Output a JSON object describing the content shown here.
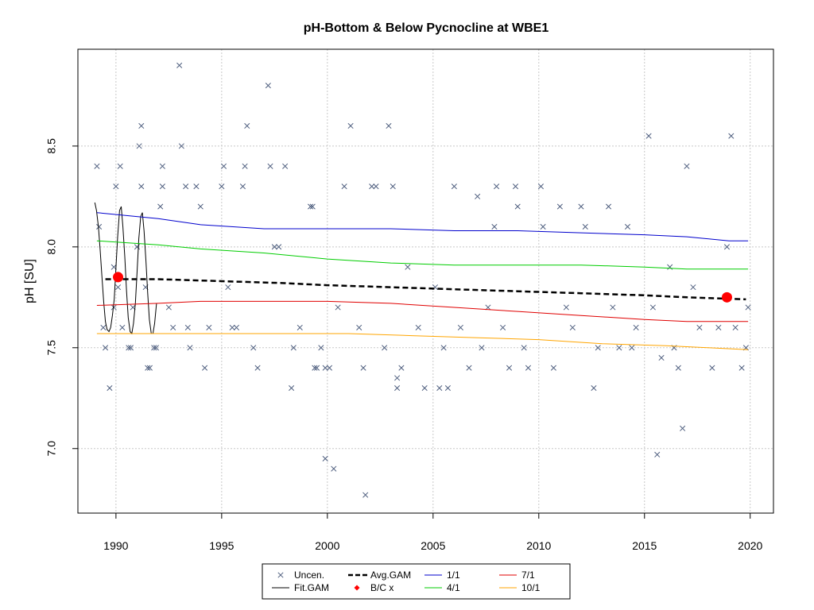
{
  "chart_data": {
    "type": "scatter",
    "title": "pH-Bottom & Below Pycnocline at WBE1",
    "xlabel": "",
    "ylabel": "pH [SU]",
    "xlim": [
      1988.2,
      2021.1
    ],
    "ylim": [
      6.68,
      8.98
    ],
    "x_ticks": [
      "1990",
      "1995",
      "2000",
      "2005",
      "2010",
      "2015",
      "2020"
    ],
    "y_ticks": [
      "7.0",
      "7.5",
      "8.0",
      "8.5"
    ],
    "grid": true,
    "legend_position": "bottom-center",
    "legend": [
      {
        "label": "Uncen.",
        "symbol": "x",
        "color": "#4F5F7F"
      },
      {
        "label": "Fit.GAM",
        "symbol": "line",
        "color": "#000000"
      },
      {
        "label": "Avg.GAM",
        "symbol": "dashed-line",
        "color": "#000000"
      },
      {
        "label": "B/C x",
        "symbol": "diamond",
        "color": "#FF0000"
      },
      {
        "label": "1/1",
        "symbol": "line",
        "color": "#0000CD"
      },
      {
        "label": "4/1",
        "symbol": "line",
        "color": "#00CD00"
      },
      {
        "label": "7/1",
        "symbol": "line",
        "color": "#E00000"
      },
      {
        "label": "10/1",
        "symbol": "line",
        "color": "#FFA500"
      }
    ],
    "colors": {
      "uncen": "#4F5F7F",
      "fit": "#000000",
      "avg": "#000000",
      "bc": "#FF0000",
      "jan": "#0000CD",
      "apr": "#00CD00",
      "jul": "#E00000",
      "oct": "#FFA500",
      "grid": "#C8C8C8"
    },
    "series": [
      {
        "name": "Uncen.",
        "type": "scatter",
        "points": [
          [
            1989.1,
            8.4
          ],
          [
            1989.2,
            8.1
          ],
          [
            1989.4,
            7.6
          ],
          [
            1989.5,
            7.5
          ],
          [
            1989.7,
            7.3
          ],
          [
            1989.9,
            7.7
          ],
          [
            1989.9,
            7.9
          ],
          [
            1990.0,
            8.3
          ],
          [
            1990.1,
            7.8
          ],
          [
            1990.2,
            8.4
          ],
          [
            1990.3,
            7.6
          ],
          [
            1990.6,
            7.5
          ],
          [
            1990.7,
            7.5
          ],
          [
            1990.8,
            7.7
          ],
          [
            1991.0,
            8.0
          ],
          [
            1991.1,
            8.5
          ],
          [
            1991.2,
            8.6
          ],
          [
            1991.2,
            8.3
          ],
          [
            1991.4,
            7.8
          ],
          [
            1991.5,
            7.4
          ],
          [
            1991.6,
            7.4
          ],
          [
            1991.8,
            7.5
          ],
          [
            1991.9,
            7.5
          ],
          [
            1992.1,
            8.2
          ],
          [
            1992.2,
            8.4
          ],
          [
            1992.2,
            8.3
          ],
          [
            1992.5,
            7.7
          ],
          [
            1992.7,
            7.6
          ],
          [
            1993.0,
            8.9
          ],
          [
            1993.1,
            8.5
          ],
          [
            1993.3,
            8.3
          ],
          [
            1993.4,
            7.6
          ],
          [
            1993.5,
            7.5
          ],
          [
            1993.8,
            8.3
          ],
          [
            1994.0,
            8.2
          ],
          [
            1994.2,
            7.4
          ],
          [
            1994.4,
            7.6
          ],
          [
            1995.0,
            8.3
          ],
          [
            1995.1,
            8.4
          ],
          [
            1995.3,
            7.8
          ],
          [
            1995.5,
            7.6
          ],
          [
            1995.7,
            7.6
          ],
          [
            1996.0,
            8.3
          ],
          [
            1996.1,
            8.4
          ],
          [
            1996.2,
            8.6
          ],
          [
            1996.5,
            7.5
          ],
          [
            1996.7,
            7.4
          ],
          [
            1997.2,
            8.8
          ],
          [
            1997.3,
            8.4
          ],
          [
            1997.5,
            8.0
          ],
          [
            1997.7,
            8.0
          ],
          [
            1998.0,
            8.4
          ],
          [
            1998.3,
            7.3
          ],
          [
            1998.4,
            7.5
          ],
          [
            1998.7,
            7.6
          ],
          [
            1999.2,
            8.2
          ],
          [
            1999.3,
            8.2
          ],
          [
            1999.4,
            7.4
          ],
          [
            1999.5,
            7.4
          ],
          [
            1999.7,
            7.5
          ],
          [
            1999.9,
            7.4
          ],
          [
            1999.9,
            6.95
          ],
          [
            2000.1,
            7.4
          ],
          [
            2000.3,
            6.9
          ],
          [
            2000.5,
            7.7
          ],
          [
            2000.8,
            8.3
          ],
          [
            2001.1,
            8.6
          ],
          [
            2001.5,
            7.6
          ],
          [
            2001.7,
            7.4
          ],
          [
            2001.8,
            6.77
          ],
          [
            2002.1,
            8.3
          ],
          [
            2002.3,
            8.3
          ],
          [
            2002.7,
            7.5
          ],
          [
            2002.9,
            8.6
          ],
          [
            2003.1,
            8.3
          ],
          [
            2003.3,
            7.3
          ],
          [
            2003.3,
            7.35
          ],
          [
            2003.5,
            7.4
          ],
          [
            2003.8,
            7.9
          ],
          [
            2004.3,
            7.6
          ],
          [
            2004.6,
            7.3
          ],
          [
            2005.1,
            7.8
          ],
          [
            2005.3,
            7.3
          ],
          [
            2005.5,
            7.5
          ],
          [
            2005.7,
            7.3
          ],
          [
            2006.0,
            8.3
          ],
          [
            2006.3,
            7.6
          ],
          [
            2006.7,
            7.4
          ],
          [
            2007.1,
            8.25
          ],
          [
            2007.3,
            7.5
          ],
          [
            2007.6,
            7.7
          ],
          [
            2007.9,
            8.1
          ],
          [
            2008.0,
            8.3
          ],
          [
            2008.3,
            7.6
          ],
          [
            2008.6,
            7.4
          ],
          [
            2008.9,
            8.3
          ],
          [
            2009.0,
            8.2
          ],
          [
            2009.3,
            7.5
          ],
          [
            2009.5,
            7.4
          ],
          [
            2010.1,
            8.3
          ],
          [
            2010.2,
            8.1
          ],
          [
            2010.7,
            7.4
          ],
          [
            2011.0,
            8.2
          ],
          [
            2011.3,
            7.7
          ],
          [
            2011.6,
            7.6
          ],
          [
            2012.0,
            8.2
          ],
          [
            2012.2,
            8.1
          ],
          [
            2012.6,
            7.3
          ],
          [
            2012.8,
            7.5
          ],
          [
            2013.3,
            8.2
          ],
          [
            2013.5,
            7.7
          ],
          [
            2013.8,
            7.5
          ],
          [
            2014.2,
            8.1
          ],
          [
            2014.4,
            7.5
          ],
          [
            2014.6,
            7.6
          ],
          [
            2015.2,
            8.55
          ],
          [
            2015.4,
            7.7
          ],
          [
            2015.6,
            6.97
          ],
          [
            2015.8,
            7.45
          ],
          [
            2016.2,
            7.9
          ],
          [
            2016.4,
            7.5
          ],
          [
            2016.6,
            7.4
          ],
          [
            2016.8,
            7.1
          ],
          [
            2017.0,
            8.4
          ],
          [
            2017.3,
            7.8
          ],
          [
            2017.6,
            7.6
          ],
          [
            2018.2,
            7.4
          ],
          [
            2018.5,
            7.6
          ],
          [
            2018.9,
            8.0
          ],
          [
            2019.1,
            8.55
          ],
          [
            2019.3,
            7.6
          ],
          [
            2019.6,
            7.4
          ],
          [
            2019.8,
            7.5
          ],
          [
            2019.9,
            7.7
          ]
        ]
      },
      {
        "name": "1/1",
        "type": "line",
        "points": [
          [
            1989.1,
            8.17
          ],
          [
            1992.0,
            8.14
          ],
          [
            1994.0,
            8.11
          ],
          [
            1997.0,
            8.09
          ],
          [
            2000.0,
            8.09
          ],
          [
            2003.0,
            8.09
          ],
          [
            2006.0,
            8.08
          ],
          [
            2009.0,
            8.08
          ],
          [
            2012.0,
            8.07
          ],
          [
            2015.0,
            8.06
          ],
          [
            2017.0,
            8.05
          ],
          [
            2019.0,
            8.03
          ],
          [
            2019.9,
            8.03
          ]
        ]
      },
      {
        "name": "4/1",
        "type": "line",
        "points": [
          [
            1989.1,
            8.03
          ],
          [
            1992.0,
            8.01
          ],
          [
            1994.0,
            7.99
          ],
          [
            1997.0,
            7.97
          ],
          [
            2000.0,
            7.94
          ],
          [
            2003.0,
            7.92
          ],
          [
            2006.0,
            7.91
          ],
          [
            2009.0,
            7.91
          ],
          [
            2012.0,
            7.91
          ],
          [
            2015.0,
            7.9
          ],
          [
            2017.0,
            7.89
          ],
          [
            2019.0,
            7.89
          ],
          [
            2019.9,
            7.89
          ]
        ]
      },
      {
        "name": "7/1",
        "type": "line",
        "points": [
          [
            1989.1,
            7.71
          ],
          [
            1992.0,
            7.72
          ],
          [
            1994.0,
            7.73
          ],
          [
            1997.0,
            7.73
          ],
          [
            2000.0,
            7.73
          ],
          [
            2003.0,
            7.72
          ],
          [
            2006.0,
            7.7
          ],
          [
            2009.0,
            7.68
          ],
          [
            2012.0,
            7.66
          ],
          [
            2015.0,
            7.64
          ],
          [
            2017.0,
            7.63
          ],
          [
            2019.0,
            7.63
          ],
          [
            2019.9,
            7.63
          ]
        ]
      },
      {
        "name": "10/1",
        "type": "line",
        "points": [
          [
            1989.1,
            7.57
          ],
          [
            1992.0,
            7.57
          ],
          [
            1995.0,
            7.57
          ],
          [
            1998.0,
            7.57
          ],
          [
            2001.0,
            7.57
          ],
          [
            2004.0,
            7.56
          ],
          [
            2007.0,
            7.55
          ],
          [
            2010.0,
            7.54
          ],
          [
            2013.0,
            7.52
          ],
          [
            2016.0,
            7.51
          ],
          [
            2018.0,
            7.5
          ],
          [
            2019.9,
            7.49
          ]
        ]
      },
      {
        "name": "Avg.GAM",
        "type": "line",
        "points": [
          [
            1989.5,
            7.84
          ],
          [
            1992.0,
            7.84
          ],
          [
            1995.0,
            7.83
          ],
          [
            1998.0,
            7.82
          ],
          [
            2000.0,
            7.81
          ],
          [
            2003.0,
            7.8
          ],
          [
            2006.0,
            7.79
          ],
          [
            2009.0,
            7.78
          ],
          [
            2012.0,
            7.77
          ],
          [
            2015.0,
            7.76
          ],
          [
            2017.0,
            7.75
          ],
          [
            2019.8,
            7.74
          ]
        ]
      },
      {
        "name": "B/C x",
        "type": "scatter",
        "points": [
          [
            1990.1,
            7.85
          ],
          [
            2018.9,
            7.75
          ]
        ]
      },
      {
        "name": "Fit.GAM",
        "type": "line",
        "points": [
          [
            1989.0,
            8.22
          ],
          [
            1989.08,
            8.18
          ],
          [
            1989.17,
            8.1
          ],
          [
            1989.25,
            7.99
          ],
          [
            1989.33,
            7.86
          ],
          [
            1989.42,
            7.73
          ],
          [
            1989.5,
            7.63
          ],
          [
            1989.58,
            7.59
          ],
          [
            1989.67,
            7.58
          ],
          [
            1989.75,
            7.6
          ],
          [
            1989.83,
            7.66
          ],
          [
            1989.92,
            7.74
          ],
          [
            1990.0,
            7.9
          ],
          [
            1990.08,
            8.05
          ],
          [
            1990.17,
            8.18
          ],
          [
            1990.25,
            8.2
          ],
          [
            1990.33,
            8.1
          ],
          [
            1990.42,
            7.95
          ],
          [
            1990.5,
            7.78
          ],
          [
            1990.58,
            7.65
          ],
          [
            1990.67,
            7.58
          ],
          [
            1990.75,
            7.57
          ],
          [
            1990.83,
            7.62
          ],
          [
            1990.92,
            7.72
          ],
          [
            1991.0,
            7.88
          ],
          [
            1991.08,
            8.04
          ],
          [
            1991.17,
            8.15
          ],
          [
            1991.25,
            8.17
          ],
          [
            1991.33,
            8.08
          ],
          [
            1991.42,
            7.93
          ],
          [
            1991.5,
            7.77
          ],
          [
            1991.58,
            7.64
          ],
          [
            1991.67,
            7.57
          ],
          [
            1991.75,
            7.57
          ],
          [
            1991.83,
            7.62
          ],
          [
            1991.92,
            7.72
          ]
        ]
      }
    ]
  }
}
